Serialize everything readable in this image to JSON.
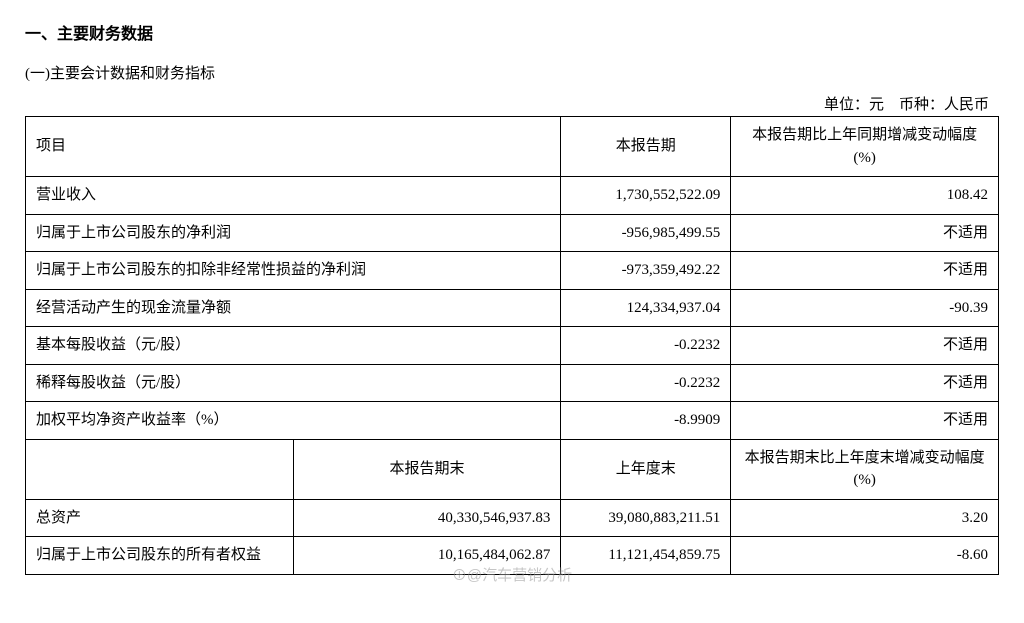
{
  "section_title": "一、主要财务数据",
  "subsection_title": "(一)主要会计数据和财务指标",
  "unit_line": "单位：元　币种：人民币",
  "header": {
    "item": "项目",
    "period_end": "本报告期末",
    "prev_year_end": "上年度末",
    "period": "本报告期",
    "change_period": "本报告期比上年同期增减变动幅度(%)",
    "change_end": "本报告期末比上年度末增减变动幅度(%)"
  },
  "rows_top": [
    {
      "item": "营业收入",
      "period": "1,730,552,522.09",
      "change": "108.42"
    },
    {
      "item": "归属于上市公司股东的净利润",
      "period": "-956,985,499.55",
      "change": "不适用"
    },
    {
      "item": "归属于上市公司股东的扣除非经常性损益的净利润",
      "period": "-973,359,492.22",
      "change": "不适用"
    },
    {
      "item": "经营活动产生的现金流量净额",
      "period": "124,334,937.04",
      "change": "-90.39"
    },
    {
      "item": "基本每股收益（元/股）",
      "period": "-0.2232",
      "change": "不适用"
    },
    {
      "item": "稀释每股收益（元/股）",
      "period": "-0.2232",
      "change": "不适用"
    },
    {
      "item": "加权平均净资产收益率（%）",
      "period": "-8.9909",
      "change": "不适用"
    }
  ],
  "rows_bottom": [
    {
      "item": "总资产",
      "end": "40,330,546,937.83",
      "prev": "39,080,883,211.51",
      "change": "3.20"
    },
    {
      "item": "归属于上市公司股东的所有者权益",
      "end": "10,165,484,062.87",
      "prev": "11,121,454,859.75",
      "change": "-8.60"
    }
  ],
  "watermark": "⊕@汽车营销分析"
}
